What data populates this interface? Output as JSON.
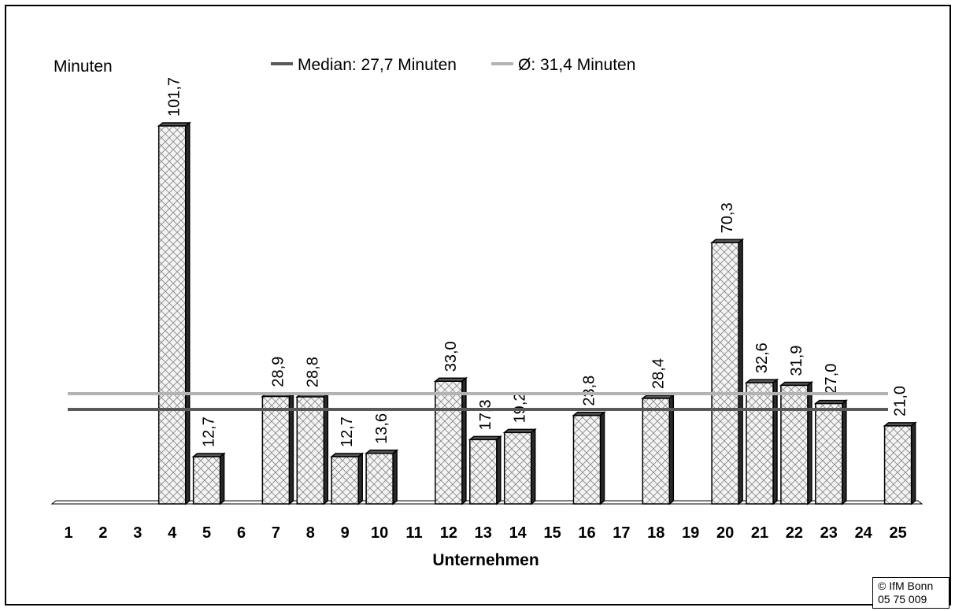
{
  "chart_data": {
    "type": "bar",
    "ylabel": "Minuten",
    "xlabel": "Unternehmen",
    "categories": [
      "1",
      "2",
      "3",
      "4",
      "5",
      "6",
      "7",
      "8",
      "9",
      "10",
      "11",
      "12",
      "13",
      "14",
      "15",
      "16",
      "17",
      "18",
      "19",
      "20",
      "21",
      "22",
      "23",
      "24",
      "25"
    ],
    "values": [
      null,
      null,
      null,
      101.7,
      12.7,
      null,
      28.9,
      28.8,
      12.7,
      13.6,
      null,
      33.0,
      17.3,
      19.2,
      null,
      23.8,
      null,
      28.4,
      null,
      70.3,
      32.6,
      31.9,
      27.0,
      null,
      21.0
    ],
    "value_labels": [
      "",
      "",
      "",
      "101,7",
      "12,7",
      "",
      "28,9",
      "28,8",
      "12,7",
      "13,6",
      "",
      "33,0",
      "17,3",
      "19,2",
      "",
      "23,8",
      "",
      "28,4",
      "",
      "70,3",
      "32,6",
      "31,9",
      "27,0",
      "",
      "21,0"
    ],
    "reference_lines": [
      {
        "name": "Median: 27,7 Minuten",
        "value": 27.7,
        "color": "#595959"
      },
      {
        "name": "Ø: 31,4 Minuten",
        "value": 31.4,
        "color": "#b3b3b3"
      }
    ],
    "ylim": [
      0,
      105
    ],
    "bar_fill": "crosshatch",
    "legend_position": "top"
  },
  "footer": {
    "copyright_line1": "© IfM Bonn",
    "copyright_line2": "05 75 009"
  }
}
